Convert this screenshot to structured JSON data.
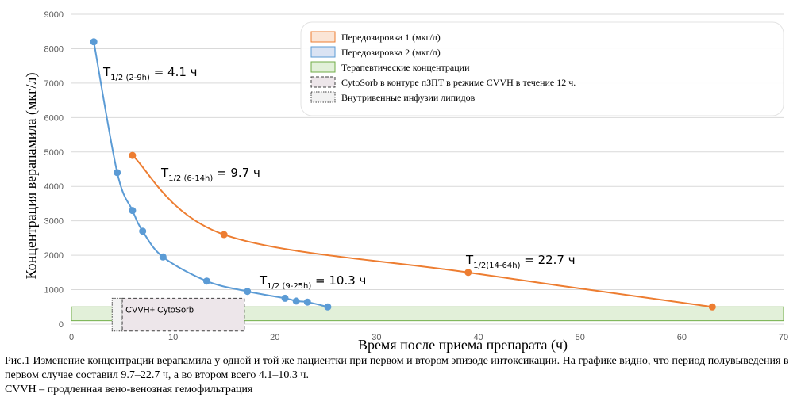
{
  "chart_data": {
    "type": "line",
    "xlabel": "Время после приема препарата (ч)",
    "ylabel": "Концентрация  верапамила  (мкг/л)",
    "xlim": [
      0,
      70
    ],
    "ylim": [
      0,
      9000
    ],
    "x_ticks": [
      "0",
      "10",
      "20",
      "30",
      "40",
      "50",
      "60",
      "70"
    ],
    "y_ticks": [
      "0",
      "1000",
      "2000",
      "3000",
      "4000",
      "5000",
      "6000",
      "7000",
      "8000",
      "9000"
    ],
    "grid": "horizontal",
    "legend_position": "top-right",
    "series": [
      {
        "name": "Передозировка 1 (мкг/л)",
        "color": "#ed7d31",
        "points": [
          [
            6,
            4900
          ],
          [
            15,
            2600
          ],
          [
            39,
            1500
          ],
          [
            63,
            500
          ]
        ]
      },
      {
        "name": "Передозировка 2 (мкг/л)",
        "color": "#5b9bd5",
        "points": [
          [
            2.2,
            8200
          ],
          [
            4.5,
            4400
          ],
          [
            6,
            3300
          ],
          [
            7,
            2700
          ],
          [
            9,
            1950
          ],
          [
            13.3,
            1250
          ],
          [
            17.3,
            950
          ],
          [
            21,
            750
          ],
          [
            22.1,
            670
          ],
          [
            23.2,
            640
          ],
          [
            25.2,
            500
          ]
        ]
      }
    ],
    "bands": [
      {
        "name": "Терапевтические концентрации",
        "x": [
          0,
          70
        ],
        "y": [
          100,
          500
        ],
        "fill": "#e2f0d9",
        "stroke": "#70ad47"
      },
      {
        "name": "CytoSorb в контуре пЗПТ в режиме CVVH в течение 12 ч.",
        "label": "CVVH+ CytoSorb",
        "x": [
          5,
          17
        ],
        "y": [
          -200,
          750
        ],
        "fill": "#ede6ea",
        "stroke": "#404040"
      },
      {
        "name": "Внутривенные инфузии липидов",
        "x": [
          4,
          5
        ],
        "y": [
          -200,
          750
        ],
        "fill": "#f2f2f2",
        "stroke": "#404040"
      }
    ],
    "annotations": [
      {
        "main": "T",
        "sub": "1/2 (2-9h)",
        "tail": " = 4.1 ч"
      },
      {
        "main": "T",
        "sub": "1/2 (6-14h)",
        "tail": " = 9.7 ч"
      },
      {
        "main": "T",
        "sub": "1/2 (9-25h)",
        "tail": " = 10.3 ч"
      },
      {
        "main": "T",
        "sub": "1/2(14-64h)",
        "tail": " = 22.7 ч"
      }
    ]
  },
  "legend": {
    "items": [
      {
        "label": "Передозировка 1 (мкг/л)",
        "fill": "#fbe5d6",
        "stroke": "#ed7d31",
        "dashed": false
      },
      {
        "label": "Передозировка 2 (мкг/л)",
        "fill": "#dae3f3",
        "stroke": "#5b9bd5",
        "dashed": false
      },
      {
        "label": "Терапевтические концентрации",
        "fill": "#e2f0d9",
        "stroke": "#70ad47",
        "dashed": false
      },
      {
        "label": "CytoSorb в контуре пЗПТ в режиме CVVH в течение 12 ч.",
        "fill": "#ede6ea",
        "stroke": "#404040",
        "dashed": true
      },
      {
        "label": "Внутривенные инфузии липидов",
        "fill": "#f2f2f2",
        "stroke": "#404040",
        "dashed": true
      }
    ]
  },
  "caption": {
    "line1": "Рис.1 Изменение концентрации верапамила у одной и той же пациентки при первом и втором эпизоде интоксикации. На графике видно, что период полувыведения в первом случае составил 9.7–22.7 ч, а во втором всего 4.1–10.3 ч.",
    "line2": "CVVH – продленная вено-венозная гемофильтрация"
  }
}
